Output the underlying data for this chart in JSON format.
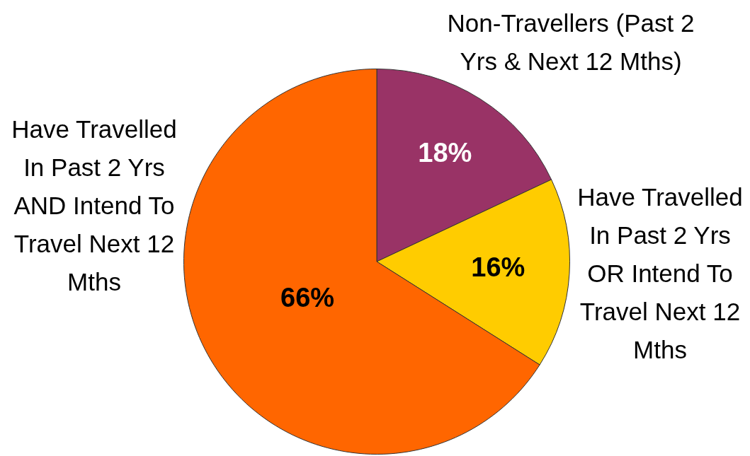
{
  "chart_data": {
    "type": "pie",
    "categories": [
      "Non-Travellers (Past 2 Yrs & Next 12 Mths)",
      "Have Travelled In Past 2 Yrs OR Intend To Travel Next 12 Mths",
      "Have Travelled In Past 2 Yrs AND Intend To Travel Next 12 Mths"
    ],
    "values": [
      18,
      16,
      66
    ],
    "colors": [
      "#993366",
      "#ffcc00",
      "#ff6600"
    ],
    "value_labels": [
      "18%",
      "16%",
      "66%"
    ]
  }
}
